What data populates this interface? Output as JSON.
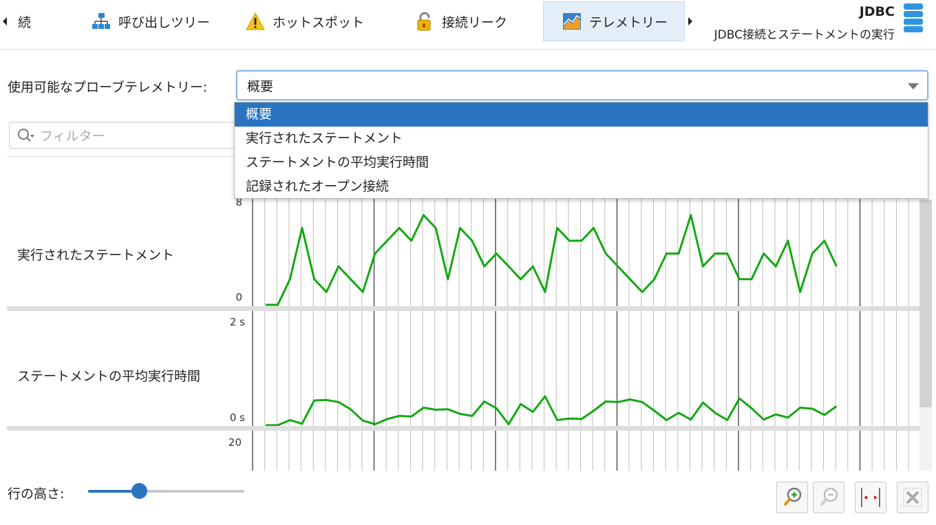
{
  "tabs": {
    "prev_label": "続",
    "items": [
      {
        "label": "呼び出しツリー",
        "icon": "tree-icon"
      },
      {
        "label": "ホットスポット",
        "icon": "warning-icon"
      },
      {
        "label": "接続リーク",
        "icon": "lock-icon"
      },
      {
        "label": "テレメトリー",
        "icon": "telemetry-icon"
      }
    ],
    "active_index": 3
  },
  "header": {
    "title": "JDBC",
    "subtitle": "JDBC接続とステートメントの実行",
    "icon": "database-icon"
  },
  "probe": {
    "label": "使用可能なプローブテレメトリー:",
    "selected": "概要",
    "options": [
      "概要",
      "実行されたステートメント",
      "ステートメントの平均実行時間",
      "記録されたオープン接続"
    ],
    "selected_index": 0
  },
  "filter": {
    "placeholder": "フィルター"
  },
  "charts": {
    "line_color": "#12a812",
    "rows": [
      {
        "label": "実行されたステートメント",
        "y_top_label": "8",
        "y_bottom_label": "0"
      },
      {
        "label": "ステートメントの平均実行時間",
        "y_top_label": "2 s",
        "y_bottom_label": "0 s"
      },
      {
        "label": "",
        "y_top_label": "20",
        "y_bottom_label": ""
      }
    ]
  },
  "chart_data": [
    {
      "type": "line",
      "title": "実行されたステートメント",
      "ylim": [
        0,
        8
      ],
      "series": [
        {
          "values": [
            0,
            0,
            2,
            6,
            2,
            1,
            3,
            2,
            1,
            4,
            5,
            6,
            5,
            7,
            6,
            2,
            6,
            5,
            3,
            4,
            3,
            2,
            3,
            1,
            6,
            5,
            5,
            6,
            4,
            3,
            2,
            1,
            2,
            4,
            4,
            7,
            3,
            4,
            4,
            2,
            2,
            4,
            3,
            5,
            1,
            4,
            5,
            3
          ]
        }
      ]
    },
    {
      "type": "line",
      "title": "ステートメントの平均実行時間",
      "ylim": [
        0,
        2
      ],
      "ylabel_unit": "s",
      "series": [
        {
          "values": [
            0,
            0,
            0.1,
            0.03,
            0.48,
            0.49,
            0.45,
            0.31,
            0.09,
            0.02,
            0.12,
            0.18,
            0.17,
            0.34,
            0.3,
            0.31,
            0.22,
            0.18,
            0.46,
            0.33,
            0.02,
            0.41,
            0.26,
            0.56,
            0.1,
            0.13,
            0.12,
            0.28,
            0.46,
            0.45,
            0.5,
            0.45,
            0.28,
            0.1,
            0.24,
            0.11,
            0.44,
            0.24,
            0.1,
            0.52,
            0.33,
            0.11,
            0.21,
            0.15,
            0.34,
            0.32,
            0.2,
            0.37
          ]
        }
      ]
    }
  ]
}
